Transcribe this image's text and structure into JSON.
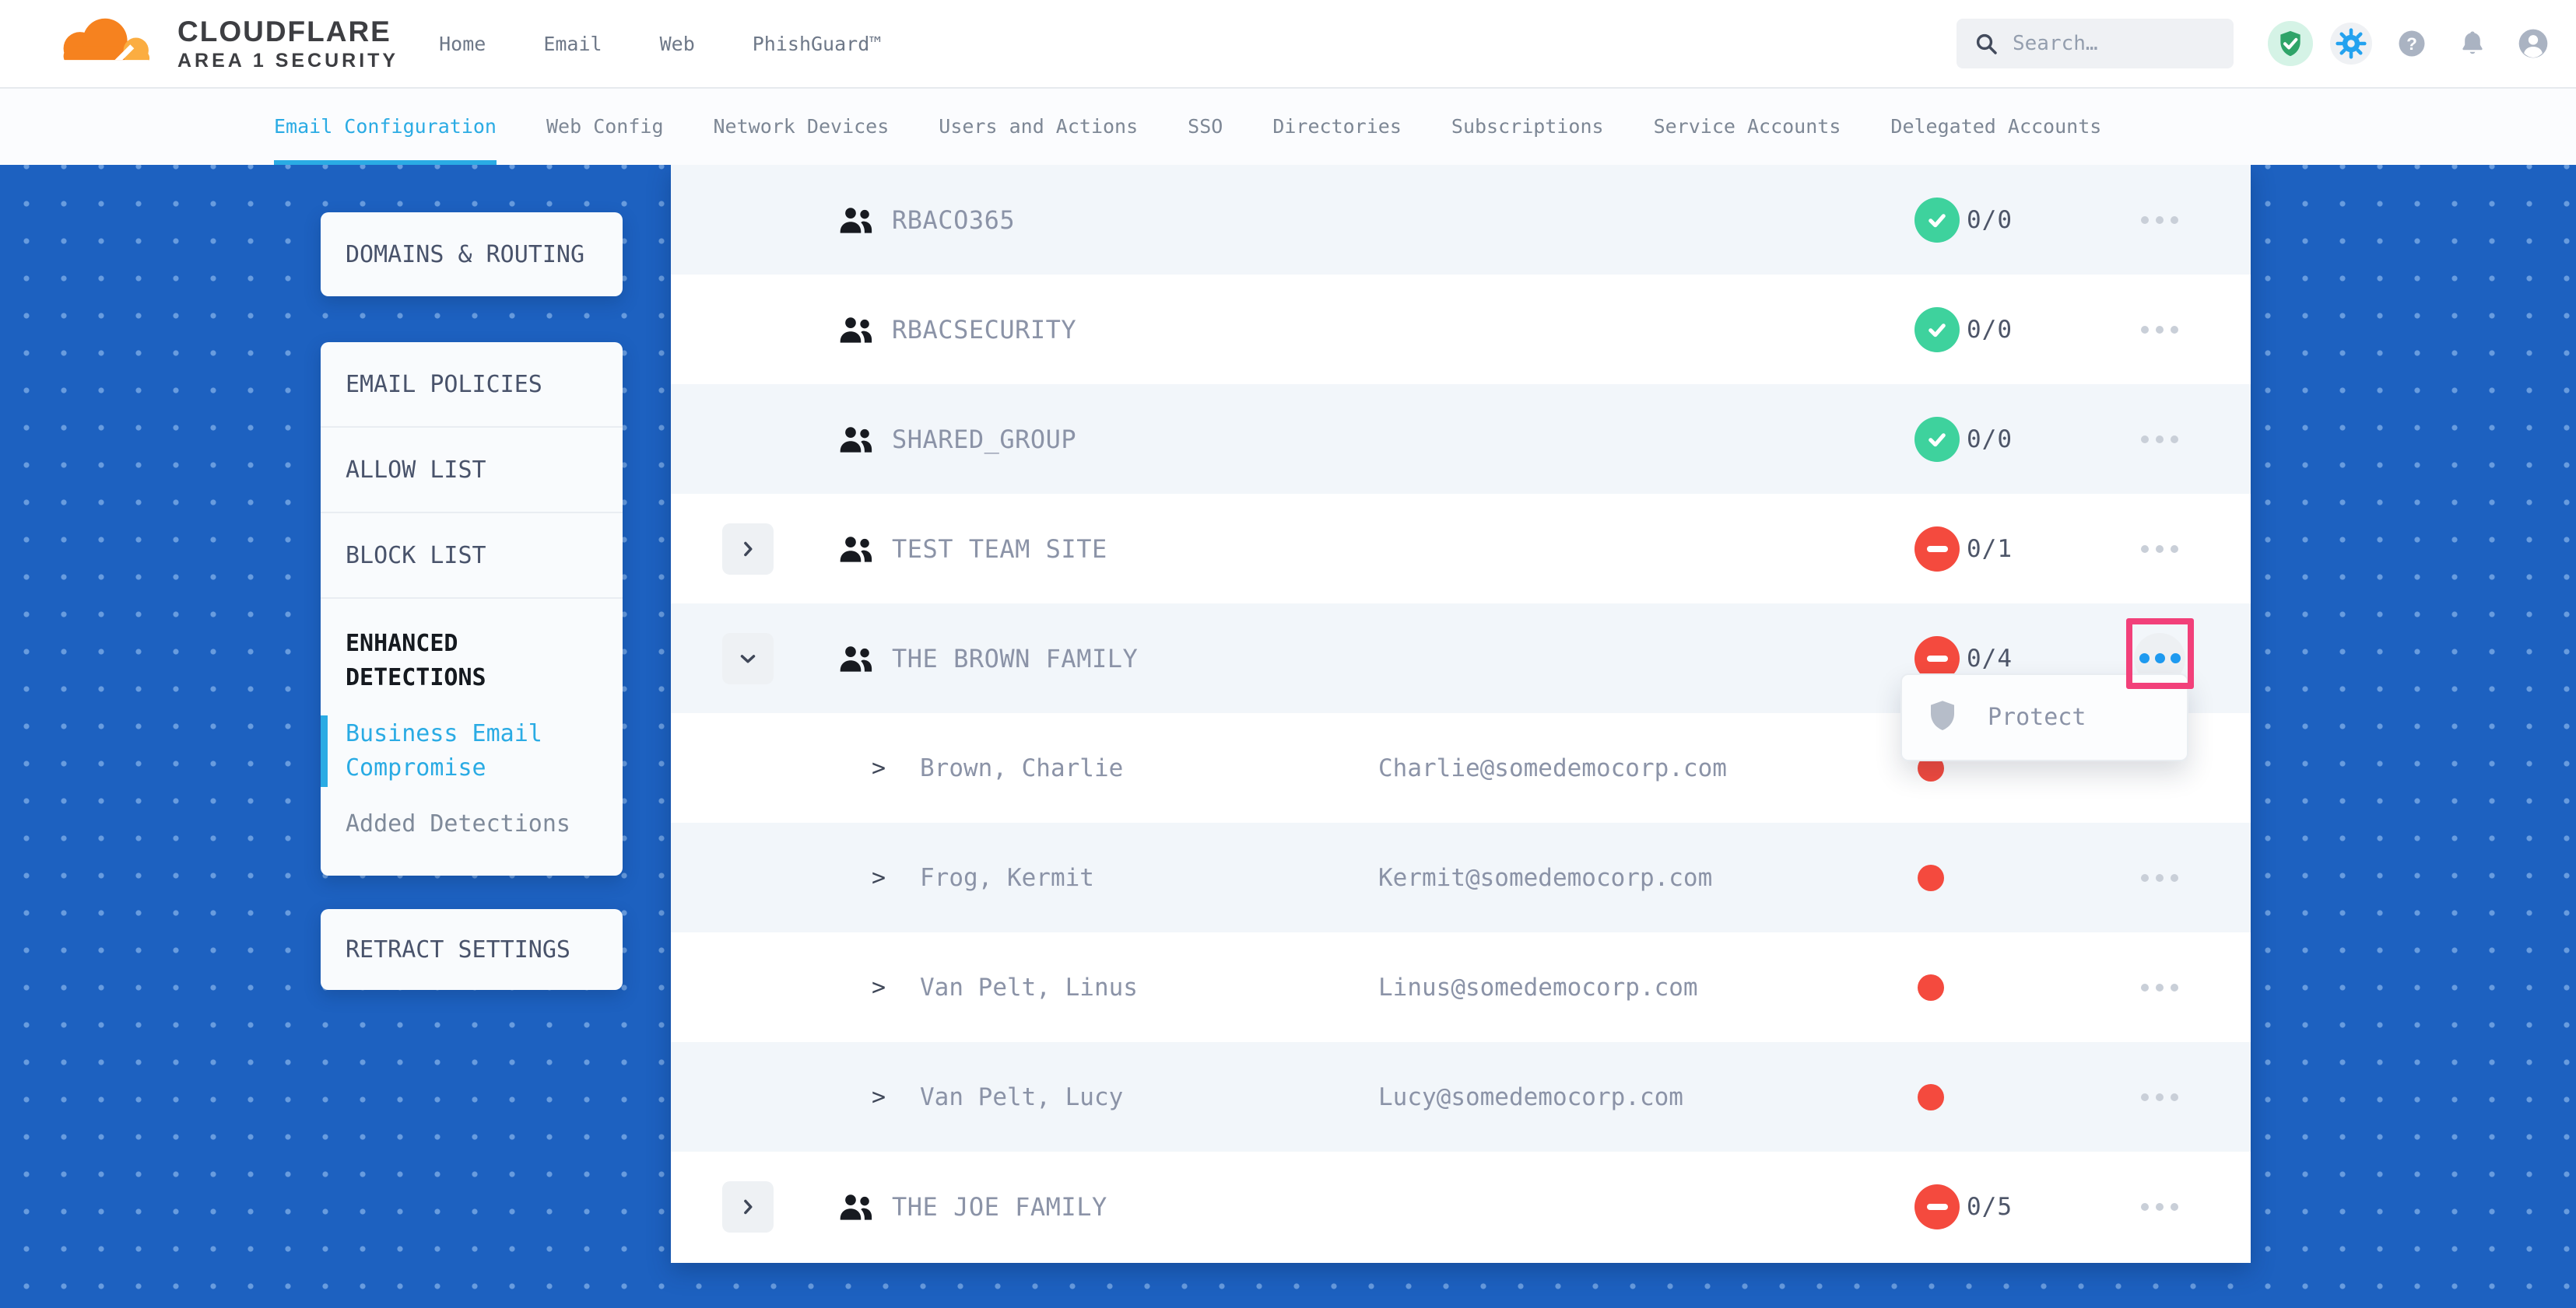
{
  "brand": {
    "name": "CLOUDFLARE",
    "product": "AREA 1 SECURITY"
  },
  "topnav": {
    "items": [
      "Home",
      "Email",
      "Web",
      "PhishGuard™"
    ]
  },
  "search": {
    "placeholder": "Search…"
  },
  "header_icons": [
    {
      "name": "shield-check-icon"
    },
    {
      "name": "settings-gear-icon"
    },
    {
      "name": "help-icon"
    },
    {
      "name": "notifications-bell-icon"
    },
    {
      "name": "account-icon"
    }
  ],
  "subnav": {
    "tabs": [
      {
        "label": "Email Configuration",
        "active": true
      },
      {
        "label": "Web Config",
        "active": false
      },
      {
        "label": "Network Devices",
        "active": false
      },
      {
        "label": "Users and Actions",
        "active": false
      },
      {
        "label": "SSO",
        "active": false
      },
      {
        "label": "Directories",
        "active": false
      },
      {
        "label": "Subscriptions",
        "active": false
      },
      {
        "label": "Service Accounts",
        "active": false
      },
      {
        "label": "Delegated Accounts",
        "active": false
      }
    ]
  },
  "sidebar": {
    "domains_routing": "DOMAINS & ROUTING",
    "policies": [
      "EMAIL POLICIES",
      "ALLOW LIST",
      "BLOCK LIST"
    ],
    "enhanced": {
      "title": "ENHANCED DETECTIONS",
      "children": [
        {
          "label": "Business Email Compromise",
          "active": true
        },
        {
          "label": "Added Detections",
          "active": false
        }
      ]
    },
    "retract": "RETRACT SETTINGS"
  },
  "table": {
    "member_arrow": ">",
    "rows": [
      {
        "kind": "group",
        "name": "RBACO365",
        "status": "ok",
        "count": "0/0",
        "expand": "none",
        "menu": "default"
      },
      {
        "kind": "group",
        "name": "RBACSECURITY",
        "status": "ok",
        "count": "0/0",
        "expand": "none",
        "menu": "default"
      },
      {
        "kind": "group",
        "name": "SHARED_GROUP",
        "status": "ok",
        "count": "0/0",
        "expand": "none",
        "menu": "default"
      },
      {
        "kind": "group",
        "name": "TEST TEAM SITE",
        "status": "blocked",
        "count": "0/1",
        "expand": "right",
        "menu": "default"
      },
      {
        "kind": "group",
        "name": "THE BROWN FAMILY",
        "status": "blocked",
        "count": "0/4",
        "expand": "down",
        "menu": "active"
      },
      {
        "kind": "member",
        "name": "Brown, Charlie",
        "email": "Charlie@somedemocorp.com",
        "status": "blocked",
        "menu": "none"
      },
      {
        "kind": "member",
        "name": "Frog, Kermit",
        "email": "Kermit@somedemocorp.com",
        "status": "blocked",
        "menu": "default"
      },
      {
        "kind": "member",
        "name": "Van Pelt, Linus",
        "email": "Linus@somedemocorp.com",
        "status": "blocked",
        "menu": "default"
      },
      {
        "kind": "member",
        "name": "Van Pelt, Lucy",
        "email": "Lucy@somedemocorp.com",
        "status": "blocked",
        "menu": "default"
      },
      {
        "kind": "group",
        "name": "THE JOE FAMILY",
        "status": "blocked",
        "count": "0/5",
        "expand": "right",
        "menu": "default"
      }
    ]
  },
  "context_menu": {
    "items": [
      {
        "icon": "shield-icon",
        "label": "Protect"
      }
    ]
  },
  "colors": {
    "accent_blue": "#2aabe4",
    "menu_active_blue": "#1e9af0",
    "brand_orange": "#f6821f",
    "brand_orange_light": "#fbad41",
    "ok_green": "#3ed29d",
    "blocked_red": "#f44a3e",
    "annotation_pink": "#f2407a",
    "background_blue": "#1d61c0"
  }
}
